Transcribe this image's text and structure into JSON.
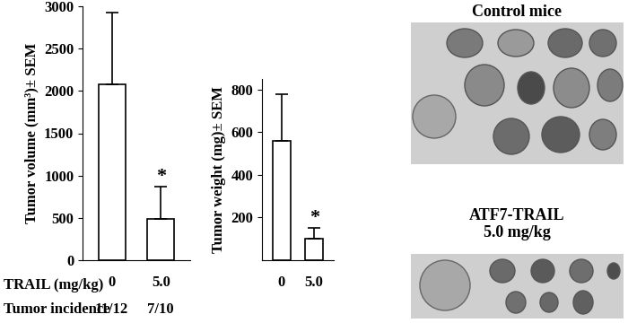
{
  "chart_data": [
    {
      "type": "bar",
      "ylabel": "Tumor volume (mm³)± SEM",
      "categories": [
        "0",
        "5.0"
      ],
      "values": [
        2080,
        490
      ],
      "errors": [
        850,
        380
      ],
      "color": "#ffffff",
      "ylim": [
        0,
        3000
      ],
      "yticks": [
        0,
        500,
        1000,
        1500,
        2000,
        2500,
        3000
      ],
      "annotations": [
        {
          "category": "5.0",
          "text": "*"
        }
      ]
    },
    {
      "type": "bar",
      "ylabel": "Tumor weight (mg)± SEM",
      "categories": [
        "0",
        "5.0"
      ],
      "values": [
        560,
        100
      ],
      "errors": [
        220,
        50
      ],
      "color": "#ffffff",
      "ylim": [
        0,
        850
      ],
      "yticks": [
        200,
        400,
        600,
        800
      ],
      "annotations": [
        {
          "category": "5.0",
          "text": "*"
        }
      ]
    }
  ],
  "rows": {
    "dose_label": "TRAIL (mg/kg)",
    "incidence_label": "Tumor incidence",
    "incidence": [
      "11/12",
      "7/10"
    ]
  },
  "photos": [
    {
      "label": "Control mice"
    },
    {
      "label": "ATF7-TRAIL\n5.0 mg/kg"
    }
  ]
}
